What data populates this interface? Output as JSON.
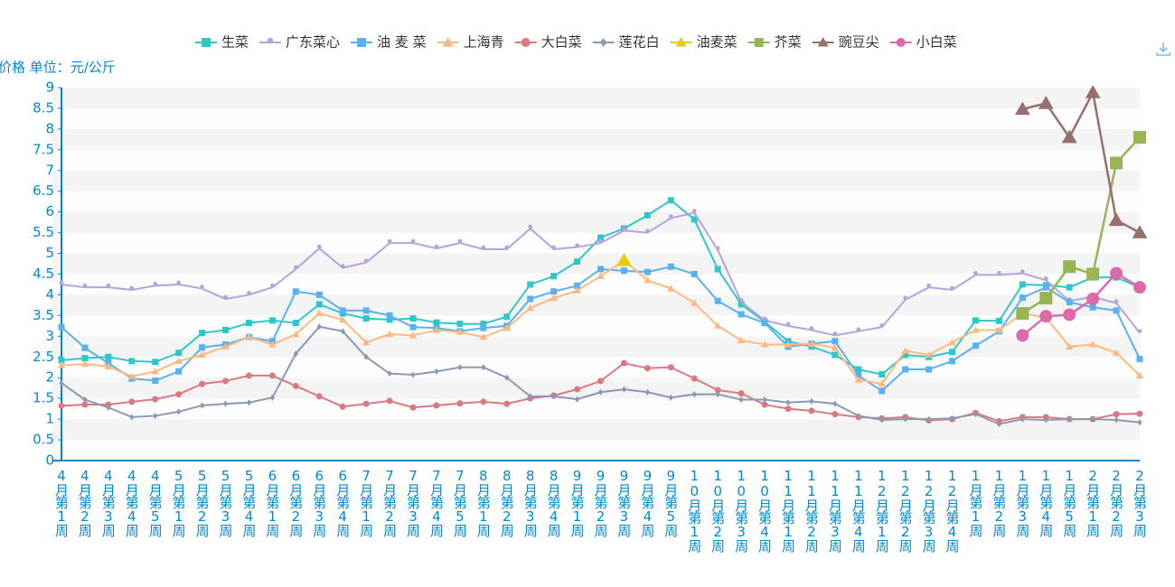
{
  "chart_data": {
    "type": "line",
    "y_axis_label": "价格 单位：元/公斤",
    "categories": [
      "4月第1周",
      "4月第2周",
      "4月第3周",
      "4月第4周",
      "4月第5周",
      "5月第1周",
      "5月第2周",
      "5月第3周",
      "5月第4周",
      "6月第1周",
      "6月第2周",
      "6月第3周",
      "6月第4周",
      "7月第1周",
      "7月第2周",
      "7月第3周",
      "7月第4周",
      "7月第5周",
      "8月第1周",
      "8月第2周",
      "8月第3周",
      "8月第4周",
      "9月第1周",
      "9月第2周",
      "9月第3周",
      "9月第4周",
      "9月第5周",
      "10月第1周",
      "10月第2周",
      "10月第3周",
      "10月第4周",
      "11月第1周",
      "11月第2周",
      "11月第3周",
      "11月第4周",
      "12月第1周",
      "12月第2周",
      "12月第3周",
      "12月第4周",
      "1月第1周",
      "1月第2周",
      "1月第3周",
      "1月第4周",
      "1月第5周",
      "2月第1周",
      "2月第2周",
      "2月第3周"
    ],
    "ylim": [
      0,
      9
    ],
    "yticks": [
      0,
      0.5,
      1,
      1.5,
      2,
      2.5,
      3,
      3.5,
      4,
      4.5,
      5,
      5.5,
      6,
      6.5,
      7,
      7.5,
      8,
      8.5,
      9
    ],
    "grid": true,
    "legend": "top",
    "series": [
      {
        "name": "生菜",
        "color": "#2ec7c9",
        "symbol": "square",
        "values": [
          2.42,
          2.47,
          2.5,
          2.4,
          2.38,
          2.6,
          3.08,
          3.15,
          3.32,
          3.38,
          3.32,
          3.77,
          3.55,
          3.43,
          3.4,
          3.43,
          3.33,
          3.3,
          3.3,
          3.47,
          4.25,
          4.45,
          4.8,
          5.38,
          5.6,
          5.92,
          6.28,
          5.82,
          4.62,
          3.77,
          3.35,
          2.88,
          2.75,
          2.55,
          2.2,
          2.08,
          2.55,
          2.5,
          2.62,
          3.38,
          3.37,
          4.25,
          4.23,
          4.18,
          4.42,
          4.42,
          4.18
        ]
      },
      {
        "name": "广东菜心",
        "color": "#b6a2de",
        "symbol": "pin",
        "values": [
          4.25,
          4.18,
          4.18,
          4.12,
          4.22,
          4.25,
          4.15,
          3.9,
          4.0,
          4.18,
          4.62,
          5.12,
          4.65,
          4.78,
          5.25,
          5.25,
          5.12,
          5.25,
          5.1,
          5.1,
          5.6,
          5.1,
          5.15,
          5.25,
          5.55,
          5.5,
          5.85,
          5.98,
          5.08,
          3.83,
          3.38,
          3.25,
          3.15,
          3.02,
          3.12,
          3.22,
          3.88,
          4.18,
          4.12,
          4.48,
          4.48,
          4.52,
          4.35,
          3.85,
          3.95,
          3.8,
          3.08
        ]
      },
      {
        "name": "油 麦 菜",
        "color": "#5ab1ef",
        "symbol": "square",
        "values": [
          3.22,
          2.72,
          2.35,
          1.98,
          1.93,
          2.15,
          2.73,
          2.8,
          2.98,
          2.88,
          4.08,
          4.0,
          3.62,
          3.62,
          3.5,
          3.22,
          3.2,
          3.12,
          3.2,
          3.25,
          3.9,
          4.08,
          4.22,
          4.62,
          4.58,
          4.55,
          4.68,
          4.5,
          3.85,
          3.53,
          3.32,
          2.75,
          2.82,
          2.88,
          2.05,
          1.68,
          2.2,
          2.2,
          2.4,
          2.77,
          3.12,
          3.93,
          4.18,
          3.82,
          3.7,
          3.62,
          2.45
        ]
      },
      {
        "name": "上海青",
        "color": "#ffb980",
        "symbol": "triangle",
        "values": [
          2.3,
          2.33,
          2.27,
          2.03,
          2.15,
          2.4,
          2.55,
          2.75,
          2.98,
          2.8,
          3.05,
          3.55,
          3.4,
          2.85,
          3.05,
          3.02,
          3.15,
          3.1,
          2.98,
          3.2,
          3.68,
          3.92,
          4.1,
          4.45,
          4.83,
          4.35,
          4.15,
          3.8,
          3.25,
          2.9,
          2.8,
          2.8,
          2.82,
          2.72,
          1.95,
          1.85,
          2.65,
          2.55,
          2.85,
          3.15,
          3.15,
          3.55,
          3.45,
          2.75,
          2.8,
          2.6,
          2.05
        ]
      },
      {
        "name": "大白菜",
        "color": "#d87a80",
        "symbol": "circle",
        "values": [
          1.32,
          1.35,
          1.35,
          1.42,
          1.48,
          1.6,
          1.85,
          1.92,
          2.05,
          2.05,
          1.8,
          1.55,
          1.3,
          1.37,
          1.44,
          1.28,
          1.33,
          1.38,
          1.42,
          1.37,
          1.5,
          1.57,
          1.72,
          1.92,
          2.35,
          2.23,
          2.25,
          1.98,
          1.7,
          1.62,
          1.35,
          1.25,
          1.2,
          1.12,
          1.05,
          1.02,
          1.05,
          0.97,
          1.0,
          1.15,
          0.95,
          1.05,
          1.05,
          1.0,
          1.0,
          1.12,
          1.13
        ]
      },
      {
        "name": "莲花白",
        "color": "#8d98b3",
        "symbol": "diamond",
        "values": [
          1.87,
          1.47,
          1.28,
          1.05,
          1.08,
          1.18,
          1.33,
          1.37,
          1.4,
          1.52,
          2.58,
          3.23,
          3.12,
          2.5,
          2.1,
          2.07,
          2.15,
          2.25,
          2.25,
          2.0,
          1.55,
          1.55,
          1.48,
          1.65,
          1.72,
          1.65,
          1.52,
          1.6,
          1.6,
          1.47,
          1.47,
          1.4,
          1.43,
          1.37,
          1.08,
          0.98,
          1.0,
          1.0,
          1.02,
          1.12,
          0.88,
          1.0,
          0.98,
          1.0,
          1.0,
          0.98,
          0.92
        ]
      },
      {
        "name": "油麦菜",
        "color": "#e5cf0d",
        "symbol": "triangle",
        "values": [
          null,
          null,
          null,
          null,
          null,
          null,
          null,
          null,
          null,
          null,
          null,
          null,
          null,
          null,
          null,
          null,
          null,
          null,
          null,
          null,
          null,
          null,
          null,
          null,
          4.83,
          null,
          null,
          null,
          null,
          null,
          null,
          null,
          null,
          null,
          null,
          null,
          null,
          null,
          null,
          null,
          null,
          null,
          null,
          null,
          null,
          null,
          null
        ]
      },
      {
        "name": "芥菜",
        "color": "#97b552",
        "symbol": "square",
        "values": [
          null,
          null,
          null,
          null,
          null,
          null,
          null,
          null,
          null,
          null,
          null,
          null,
          null,
          null,
          null,
          null,
          null,
          null,
          null,
          null,
          null,
          null,
          null,
          null,
          null,
          null,
          null,
          null,
          null,
          null,
          null,
          null,
          null,
          null,
          null,
          null,
          null,
          null,
          null,
          null,
          null,
          3.55,
          3.92,
          4.68,
          4.5,
          7.18,
          7.8
        ]
      },
      {
        "name": "豌豆尖",
        "color": "#95706d",
        "symbol": "triangle",
        "values": [
          null,
          null,
          null,
          null,
          null,
          null,
          null,
          null,
          null,
          null,
          null,
          null,
          null,
          null,
          null,
          null,
          null,
          null,
          null,
          null,
          null,
          null,
          null,
          null,
          null,
          null,
          null,
          null,
          null,
          null,
          null,
          null,
          null,
          null,
          null,
          null,
          null,
          null,
          null,
          null,
          null,
          8.48,
          8.62,
          7.8,
          8.88,
          5.8,
          5.5
        ]
      },
      {
        "name": "小白菜",
        "color": "#dc69aa",
        "symbol": "circle",
        "values": [
          null,
          null,
          null,
          null,
          null,
          null,
          null,
          null,
          null,
          null,
          null,
          null,
          null,
          null,
          null,
          null,
          null,
          null,
          null,
          null,
          null,
          null,
          null,
          null,
          null,
          null,
          null,
          null,
          null,
          null,
          null,
          null,
          null,
          null,
          null,
          null,
          null,
          null,
          null,
          null,
          null,
          3.02,
          3.48,
          3.52,
          3.9,
          4.52,
          4.18
        ]
      }
    ]
  }
}
